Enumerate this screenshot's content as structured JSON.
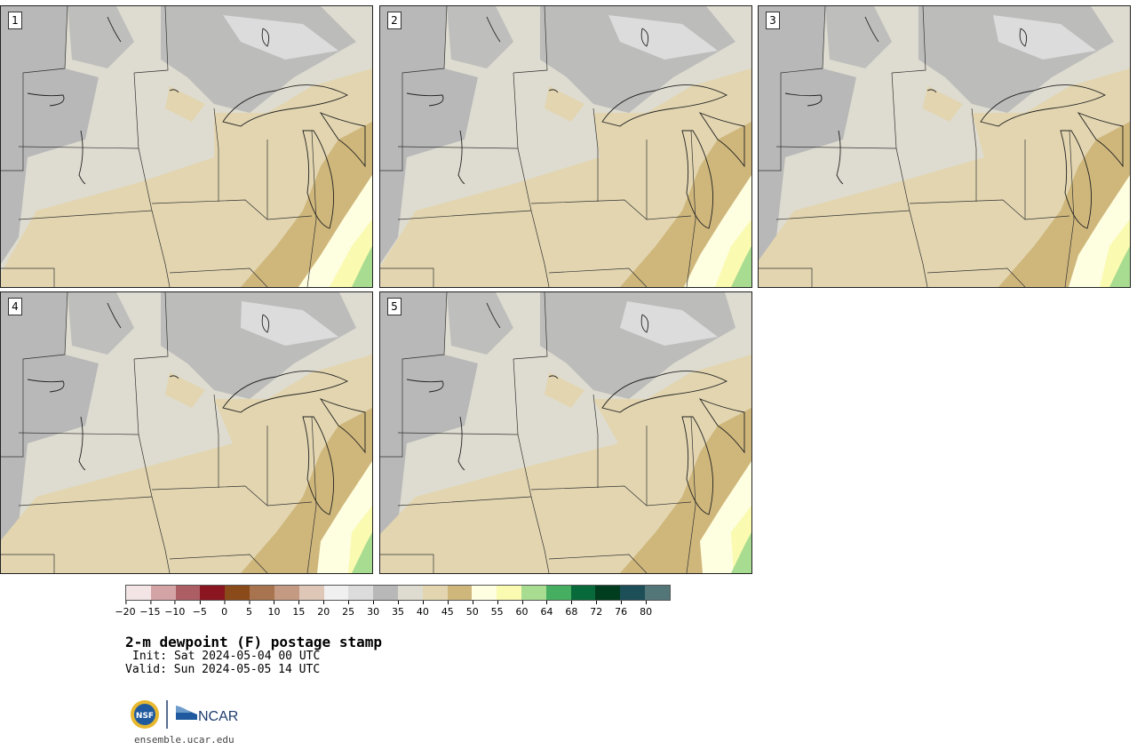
{
  "panels": [
    {
      "label": "1"
    },
    {
      "label": "2"
    },
    {
      "label": "3"
    },
    {
      "label": "4"
    },
    {
      "label": "5"
    }
  ],
  "colorbar": {
    "colors": [
      "#f3e5e5",
      "#d4a3a6",
      "#ad5e65",
      "#8b1520",
      "#8b4a1a",
      "#a8744f",
      "#c59a83",
      "#dfc7b8",
      "#f0f0f0",
      "#dcdcdc",
      "#b8b8b8",
      "#dedcd0",
      "#e2d5b0",
      "#cfb77c",
      "#fefee0",
      "#fafab0",
      "#a8dc90",
      "#46ae60",
      "#08693a",
      "#003d1f",
      "#1d4f59",
      "#537678"
    ],
    "ticks": [
      "−20",
      "−15",
      "−10",
      "−5",
      "0",
      "5",
      "10",
      "15",
      "20",
      "25",
      "30",
      "35",
      "40",
      "45",
      "50",
      "55",
      "60",
      "64",
      "68",
      "72",
      "76",
      "80"
    ]
  },
  "title": "2-m dewpoint (F) postage stamp",
  "init": "Init: Sat 2024-05-04 00 UTC",
  "valid": "Valid: Sun 2024-05-05 14 UTC",
  "logo": {
    "org1": "NSF",
    "org2": "NCAR"
  },
  "site": "ensemble.ucar.edu"
}
